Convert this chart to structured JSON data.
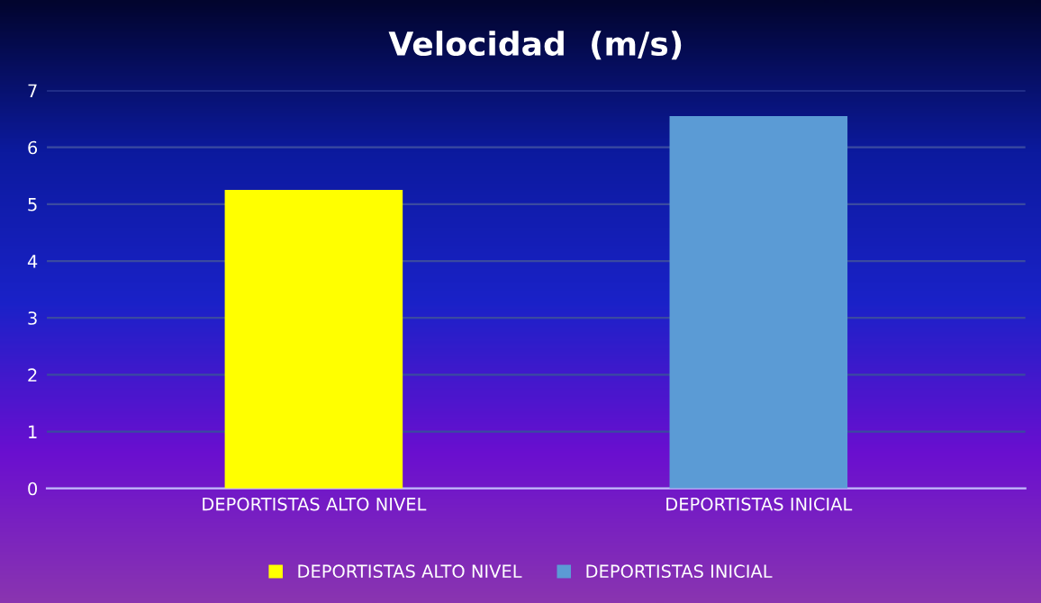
{
  "chart_data": {
    "type": "bar",
    "title": "Velocidad  (m/s)",
    "categories": [
      "DEPORTISTAS ALTO NIVEL",
      "DEPORTISTAS INICIAL"
    ],
    "series": [
      {
        "name": "DEPORTISTAS ALTO NIVEL",
        "color": "#ffff00",
        "values": [
          5.25,
          null
        ]
      },
      {
        "name": "DEPORTISTAS INICIAL",
        "color": "#5b9bd5",
        "values": [
          null,
          6.55
        ]
      }
    ],
    "ylim": [
      0,
      7
    ],
    "yticks": [
      0,
      1,
      2,
      3,
      4,
      5,
      6,
      7
    ],
    "grid": "y",
    "legend": "bottom"
  }
}
